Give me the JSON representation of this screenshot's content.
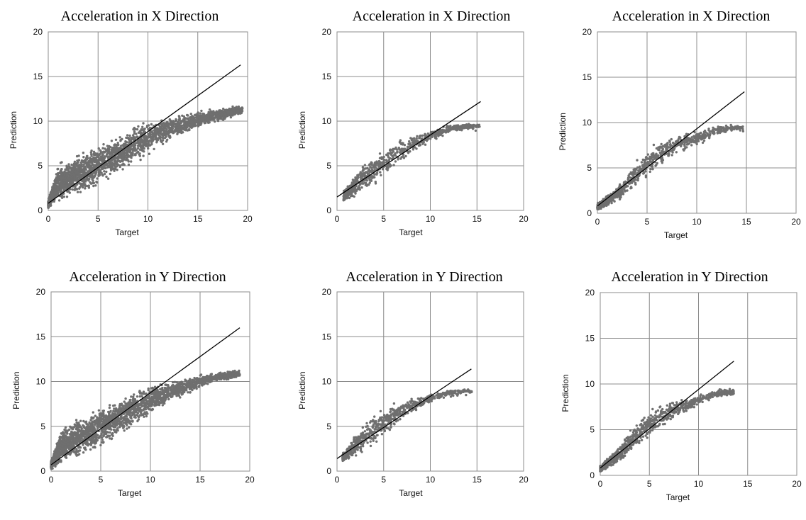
{
  "chart_data": [
    {
      "type": "scatter",
      "title": "Acceleration in X Direction",
      "xlabel": "Target",
      "ylabel": "Prediction",
      "xlim": [
        0,
        20
      ],
      "ylim": [
        0,
        20
      ],
      "xticks": [
        "0",
        "5",
        "10",
        "15",
        "20"
      ],
      "yticks": [
        "0",
        "5",
        "10",
        "15",
        "20"
      ],
      "grid": true,
      "fit_line": {
        "x": [
          0,
          19.3
        ],
        "y": [
          0.8,
          16.3
        ]
      },
      "point_cloud": {
        "x_range": [
          0,
          19.5
        ],
        "y_range": [
          0,
          11.8
        ],
        "upper_envelope_x": [
          0,
          1,
          3,
          6,
          8,
          10,
          12,
          14,
          16,
          18,
          19.5
        ],
        "upper_envelope_y": [
          1.2,
          5.5,
          6.5,
          8.2,
          9.2,
          10.3,
          10.6,
          11.0,
          11.3,
          11.6,
          11.8
        ],
        "lower_envelope_y": [
          0.2,
          0.8,
          1.6,
          3.0,
          4.5,
          6.0,
          7.5,
          8.6,
          9.6,
          10.2,
          10.8
        ]
      }
    },
    {
      "type": "scatter",
      "title": "Acceleration in X Direction",
      "xlabel": "Target",
      "ylabel": "Prediction",
      "xlim": [
        0,
        20
      ],
      "ylim": [
        0,
        20
      ],
      "xticks": [
        "0",
        "5",
        "10",
        "15",
        "20"
      ],
      "yticks": [
        "0",
        "5",
        "10",
        "15",
        "20"
      ],
      "grid": true,
      "fit_line": {
        "x": [
          0,
          15.4
        ],
        "y": [
          1.5,
          12.2
        ]
      },
      "point_cloud": {
        "x_range": [
          0.7,
          15.3
        ],
        "y_range": [
          0.9,
          10.0
        ],
        "upper_envelope_x": [
          0.7,
          2,
          4,
          6,
          8,
          10,
          12,
          14,
          15.3
        ],
        "upper_envelope_y": [
          2.2,
          4.5,
          6.5,
          7.8,
          8.6,
          9.2,
          9.6,
          9.8,
          9.7
        ],
        "lower_envelope_y": [
          0.9,
          1.4,
          2.8,
          4.5,
          6.2,
          7.4,
          8.6,
          9.1,
          9.2
        ]
      }
    },
    {
      "type": "scatter",
      "title": "Acceleration in X Direction",
      "xlabel": "Target",
      "ylabel": "Prediction",
      "xlim": [
        0,
        20
      ],
      "ylim": [
        0,
        20
      ],
      "xticks": [
        "0",
        "5",
        "10",
        "15",
        "20"
      ],
      "yticks": [
        "0",
        "5",
        "10",
        "15",
        "20"
      ],
      "grid": true,
      "fit_line": {
        "x": [
          0,
          14.8
        ],
        "y": [
          0.8,
          13.4
        ]
      },
      "point_cloud": {
        "x_range": [
          0,
          14.7
        ],
        "y_range": [
          0.2,
          9.9
        ],
        "upper_envelope_x": [
          0,
          2,
          4,
          6,
          8,
          10,
          12,
          14,
          14.7
        ],
        "upper_envelope_y": [
          1.2,
          3.0,
          6.2,
          8.0,
          8.6,
          9.2,
          9.6,
          9.8,
          9.6
        ],
        "lower_envelope_y": [
          0.2,
          1.2,
          2.8,
          4.8,
          6.5,
          7.2,
          8.6,
          9.1,
          9.2
        ]
      }
    },
    {
      "type": "scatter",
      "title": "Acceleration in Y Direction",
      "xlabel": "Target",
      "ylabel": "Prediction",
      "xlim": [
        0,
        20
      ],
      "ylim": [
        0,
        20
      ],
      "xticks": [
        "0",
        "5",
        "10",
        "15",
        "20"
      ],
      "yticks": [
        "0",
        "5",
        "10",
        "15",
        "20"
      ],
      "grid": true,
      "fit_line": {
        "x": [
          0,
          19.0
        ],
        "y": [
          0.7,
          16.0
        ]
      },
      "point_cloud": {
        "x_range": [
          0,
          19.0
        ],
        "y_range": [
          0.1,
          11.3
        ],
        "upper_envelope_x": [
          0,
          1,
          3,
          6,
          8,
          10,
          12,
          14,
          16,
          18,
          19
        ],
        "upper_envelope_y": [
          1.2,
          5.0,
          6.2,
          7.8,
          8.9,
          9.9,
          10.3,
          10.6,
          10.9,
          11.2,
          11.3
        ],
        "lower_envelope_y": [
          0.1,
          0.7,
          1.5,
          3.0,
          4.5,
          6.0,
          7.5,
          8.6,
          9.8,
          10.2,
          10.5
        ]
      }
    },
    {
      "type": "scatter",
      "title": "Acceleration in Y Direction",
      "xlabel": "Target",
      "ylabel": "Prediction",
      "xlim": [
        0,
        20
      ],
      "ylim": [
        0,
        20
      ],
      "xticks": [
        "0",
        "5",
        "10",
        "15",
        "20"
      ],
      "yticks": [
        "0",
        "5",
        "10",
        "15",
        "20"
      ],
      "grid": true,
      "fit_line": {
        "x": [
          0,
          14.4
        ],
        "y": [
          1.4,
          11.4
        ]
      },
      "point_cloud": {
        "x_range": [
          0.6,
          14.5
        ],
        "y_range": [
          1.0,
          9.2
        ],
        "upper_envelope_x": [
          0.6,
          2,
          4,
          6,
          8,
          10,
          12,
          14,
          14.5
        ],
        "upper_envelope_y": [
          2.0,
          4.3,
          6.8,
          7.6,
          8.3,
          8.7,
          9.0,
          9.2,
          9.0
        ],
        "lower_envelope_y": [
          1.0,
          1.5,
          2.8,
          4.6,
          6.4,
          7.6,
          8.5,
          8.7,
          8.7
        ]
      }
    },
    {
      "type": "scatter",
      "title": "Acceleration in Y Direction",
      "xlabel": "Target",
      "ylabel": "Prediction",
      "xlim": [
        0,
        20
      ],
      "ylim": [
        0,
        20
      ],
      "xticks": [
        "0",
        "5",
        "10",
        "15",
        "20"
      ],
      "yticks": [
        "0",
        "5",
        "10",
        "15",
        "20"
      ],
      "grid": true,
      "fit_line": {
        "x": [
          0,
          13.6
        ],
        "y": [
          0.8,
          12.5
        ]
      },
      "point_cloud": {
        "x_range": [
          0,
          13.6
        ],
        "y_range": [
          0.2,
          9.6
        ],
        "upper_envelope_x": [
          0,
          2,
          4,
          6,
          8,
          10,
          12,
          13.6
        ],
        "upper_envelope_y": [
          1.2,
          3.4,
          6.5,
          7.8,
          8.4,
          8.9,
          9.4,
          9.6
        ],
        "lower_envelope_y": [
          0.2,
          1.3,
          3.0,
          4.8,
          6.3,
          7.6,
          8.6,
          8.7
        ]
      }
    }
  ]
}
